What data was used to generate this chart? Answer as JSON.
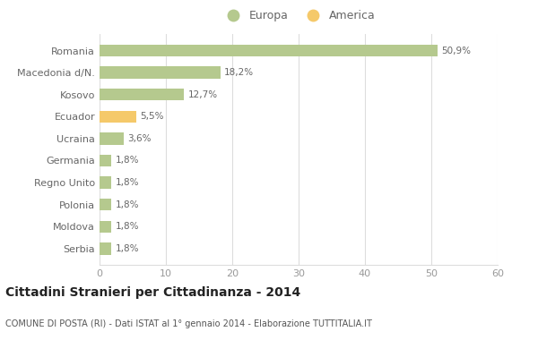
{
  "categories": [
    "Romania",
    "Macedonia d/N.",
    "Kosovo",
    "Ecuador",
    "Ucraina",
    "Germania",
    "Regno Unito",
    "Polonia",
    "Moldova",
    "Serbia"
  ],
  "values": [
    50.9,
    18.2,
    12.7,
    5.5,
    3.6,
    1.8,
    1.8,
    1.8,
    1.8,
    1.8
  ],
  "labels": [
    "50,9%",
    "18,2%",
    "12,7%",
    "5,5%",
    "3,6%",
    "1,8%",
    "1,8%",
    "1,8%",
    "1,8%",
    "1,8%"
  ],
  "colors": [
    "#b5c98e",
    "#b5c98e",
    "#b5c98e",
    "#f5c96a",
    "#b5c98e",
    "#b5c98e",
    "#b5c98e",
    "#b5c98e",
    "#b5c98e",
    "#b5c98e"
  ],
  "europa_color": "#b5c98e",
  "america_color": "#f5c96a",
  "xlim": [
    0,
    60
  ],
  "xticks": [
    0,
    10,
    20,
    30,
    40,
    50,
    60
  ],
  "title": "Cittadini Stranieri per Cittadinanza - 2014",
  "subtitle": "COMUNE DI POSTA (RI) - Dati ISTAT al 1° gennaio 2014 - Elaborazione TUTTITALIA.IT",
  "legend_europa": "Europa",
  "legend_america": "America",
  "background_color": "#ffffff",
  "grid_color": "#dddddd",
  "label_color": "#666666",
  "tick_color": "#999999"
}
